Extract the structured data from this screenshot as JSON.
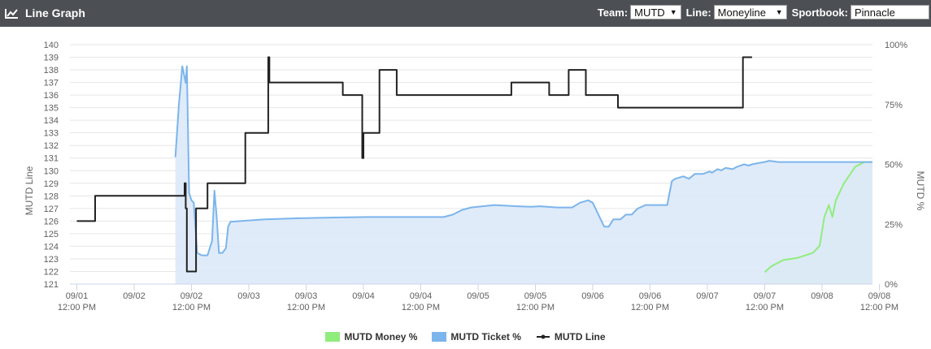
{
  "header": {
    "title": "Line Graph",
    "team_label": "Team:",
    "team_value": "MUTD",
    "line_label": "Line:",
    "line_value": "Moneyline",
    "sportsbook_label": "Sportbook:",
    "sportsbook_value": "Pinnacle"
  },
  "chart_data": {
    "type": "line",
    "y_left_label": "MUTD Line",
    "y_right_label": "MUTD %",
    "y_left_range": [
      121,
      140
    ],
    "y_left_ticks": [
      121,
      122,
      123,
      124,
      125,
      126,
      127,
      128,
      129,
      130,
      131,
      132,
      133,
      134,
      135,
      136,
      137,
      138,
      139,
      140
    ],
    "y_right_range": [
      0,
      100
    ],
    "y_right_ticks": [
      "0%",
      "25%",
      "50%",
      "75%",
      "100%"
    ],
    "x_range": [
      0.6,
      7.6
    ],
    "x_ticks": [
      {
        "v": 0.66,
        "date": "09/01",
        "time": "12:00 PM"
      },
      {
        "v": 1.16,
        "date": "09/02",
        "time": ""
      },
      {
        "v": 1.66,
        "date": "09/02",
        "time": "12:00 PM"
      },
      {
        "v": 2.16,
        "date": "09/03",
        "time": ""
      },
      {
        "v": 2.66,
        "date": "09/03",
        "time": "12:00 PM"
      },
      {
        "v": 3.16,
        "date": "09/04",
        "time": ""
      },
      {
        "v": 3.66,
        "date": "09/04",
        "time": "12:00 PM"
      },
      {
        "v": 4.16,
        "date": "09/05",
        "time": ""
      },
      {
        "v": 4.66,
        "date": "09/05",
        "time": "12:00 PM"
      },
      {
        "v": 5.16,
        "date": "09/06",
        "time": ""
      },
      {
        "v": 5.66,
        "date": "09/06",
        "time": "12:00 PM"
      },
      {
        "v": 6.16,
        "date": "09/07",
        "time": ""
      },
      {
        "v": 6.66,
        "date": "09/07",
        "time": "12:00 PM"
      },
      {
        "v": 7.16,
        "date": "09/08",
        "time": ""
      },
      {
        "v": 7.66,
        "date": "09/08",
        "time": "12:00 PM"
      }
    ],
    "grid": true,
    "legend_position": "bottom",
    "series": [
      {
        "name": "MUTD Money %",
        "axis": "right",
        "color": "#90ed7d",
        "fill": "#ccebd8",
        "points": [
          [
            6.66,
            5
          ],
          [
            6.72,
            7.5
          ],
          [
            6.82,
            10
          ],
          [
            6.95,
            11
          ],
          [
            7.08,
            13
          ],
          [
            7.14,
            16
          ],
          [
            7.18,
            28
          ],
          [
            7.22,
            33
          ],
          [
            7.25,
            28
          ],
          [
            7.28,
            35
          ],
          [
            7.35,
            42
          ],
          [
            7.45,
            49
          ],
          [
            7.53,
            51
          ],
          [
            7.6,
            51
          ]
        ]
      },
      {
        "name": "MUTD Ticket %",
        "axis": "right",
        "color": "#7cb5ec",
        "fill": "#dce9f7",
        "points": [
          [
            1.52,
            53
          ],
          [
            1.55,
            75
          ],
          [
            1.58,
            91
          ],
          [
            1.61,
            84
          ],
          [
            1.62,
            91
          ],
          [
            1.64,
            38
          ],
          [
            1.66,
            35
          ],
          [
            1.68,
            34
          ],
          [
            1.71,
            13
          ],
          [
            1.75,
            12
          ],
          [
            1.8,
            12
          ],
          [
            1.84,
            18
          ],
          [
            1.86,
            39
          ],
          [
            1.88,
            28
          ],
          [
            1.9,
            13
          ],
          [
            1.93,
            13
          ],
          [
            1.96,
            15
          ],
          [
            1.98,
            24
          ],
          [
            2.0,
            26
          ],
          [
            2.3,
            27
          ],
          [
            2.6,
            27.5
          ],
          [
            2.9,
            27.8
          ],
          [
            3.2,
            28
          ],
          [
            3.5,
            28
          ],
          [
            3.86,
            28
          ],
          [
            3.94,
            29
          ],
          [
            4.02,
            31
          ],
          [
            4.1,
            32
          ],
          [
            4.3,
            33
          ],
          [
            4.5,
            32.5
          ],
          [
            4.62,
            32.3
          ],
          [
            4.7,
            32.5
          ],
          [
            4.85,
            32
          ],
          [
            4.98,
            32
          ],
          [
            5.05,
            34
          ],
          [
            5.12,
            35
          ],
          [
            5.16,
            34
          ],
          [
            5.22,
            28
          ],
          [
            5.26,
            24
          ],
          [
            5.3,
            24
          ],
          [
            5.34,
            27
          ],
          [
            5.4,
            27
          ],
          [
            5.45,
            29
          ],
          [
            5.5,
            29
          ],
          [
            5.55,
            31.5
          ],
          [
            5.62,
            33
          ],
          [
            5.74,
            33
          ],
          [
            5.78,
            33
          ],
          [
            5.81,
            33
          ],
          [
            5.83,
            38
          ],
          [
            5.85,
            43
          ],
          [
            5.88,
            44
          ],
          [
            5.95,
            45
          ],
          [
            6.0,
            44
          ],
          [
            6.05,
            46
          ],
          [
            6.12,
            46
          ],
          [
            6.18,
            47
          ],
          [
            6.2,
            46.5
          ],
          [
            6.25,
            48
          ],
          [
            6.28,
            47.5
          ],
          [
            6.32,
            48.5
          ],
          [
            6.38,
            48
          ],
          [
            6.42,
            49
          ],
          [
            6.48,
            50
          ],
          [
            6.52,
            49.5
          ],
          [
            6.55,
            50
          ],
          [
            6.6,
            50.5
          ],
          [
            6.66,
            51
          ],
          [
            6.7,
            51.5
          ],
          [
            6.78,
            51
          ],
          [
            6.82,
            51
          ],
          [
            7.0,
            51
          ],
          [
            7.3,
            51
          ],
          [
            7.5,
            51
          ],
          [
            7.6,
            51
          ]
        ]
      },
      {
        "name": "MUTD Line",
        "axis": "left",
        "color": "#222222",
        "points": [
          [
            0.66,
            126
          ],
          [
            0.82,
            126
          ],
          [
            0.82,
            128
          ],
          [
            1.6,
            128
          ],
          [
            1.6,
            129
          ],
          [
            1.61,
            129
          ],
          [
            1.61,
            127
          ],
          [
            1.62,
            127
          ],
          [
            1.62,
            122
          ],
          [
            1.7,
            122
          ],
          [
            1.7,
            127
          ],
          [
            1.8,
            127
          ],
          [
            1.8,
            129
          ],
          [
            2.13,
            129
          ],
          [
            2.13,
            133
          ],
          [
            2.33,
            133
          ],
          [
            2.33,
            139
          ],
          [
            2.34,
            139
          ],
          [
            2.34,
            137
          ],
          [
            2.98,
            137
          ],
          [
            2.98,
            136
          ],
          [
            3.15,
            136
          ],
          [
            3.15,
            131
          ],
          [
            3.16,
            131
          ],
          [
            3.16,
            133
          ],
          [
            3.3,
            133
          ],
          [
            3.3,
            138
          ],
          [
            3.45,
            138
          ],
          [
            3.45,
            136
          ],
          [
            4.45,
            136
          ],
          [
            4.45,
            137
          ],
          [
            4.78,
            137
          ],
          [
            4.78,
            136
          ],
          [
            4.95,
            136
          ],
          [
            4.95,
            138
          ],
          [
            5.1,
            138
          ],
          [
            5.1,
            136
          ],
          [
            5.38,
            136
          ],
          [
            5.38,
            135
          ],
          [
            6.47,
            135
          ],
          [
            6.47,
            139
          ],
          [
            6.55,
            139
          ]
        ]
      }
    ]
  },
  "legend": {
    "money": "MUTD Money %",
    "ticket": "MUTD Ticket %",
    "line": "MUTD Line"
  },
  "colors": {
    "header_bg": "#4c4f53",
    "money": "#90ed7d",
    "ticket": "#7cb5ec",
    "line": "#222222"
  }
}
